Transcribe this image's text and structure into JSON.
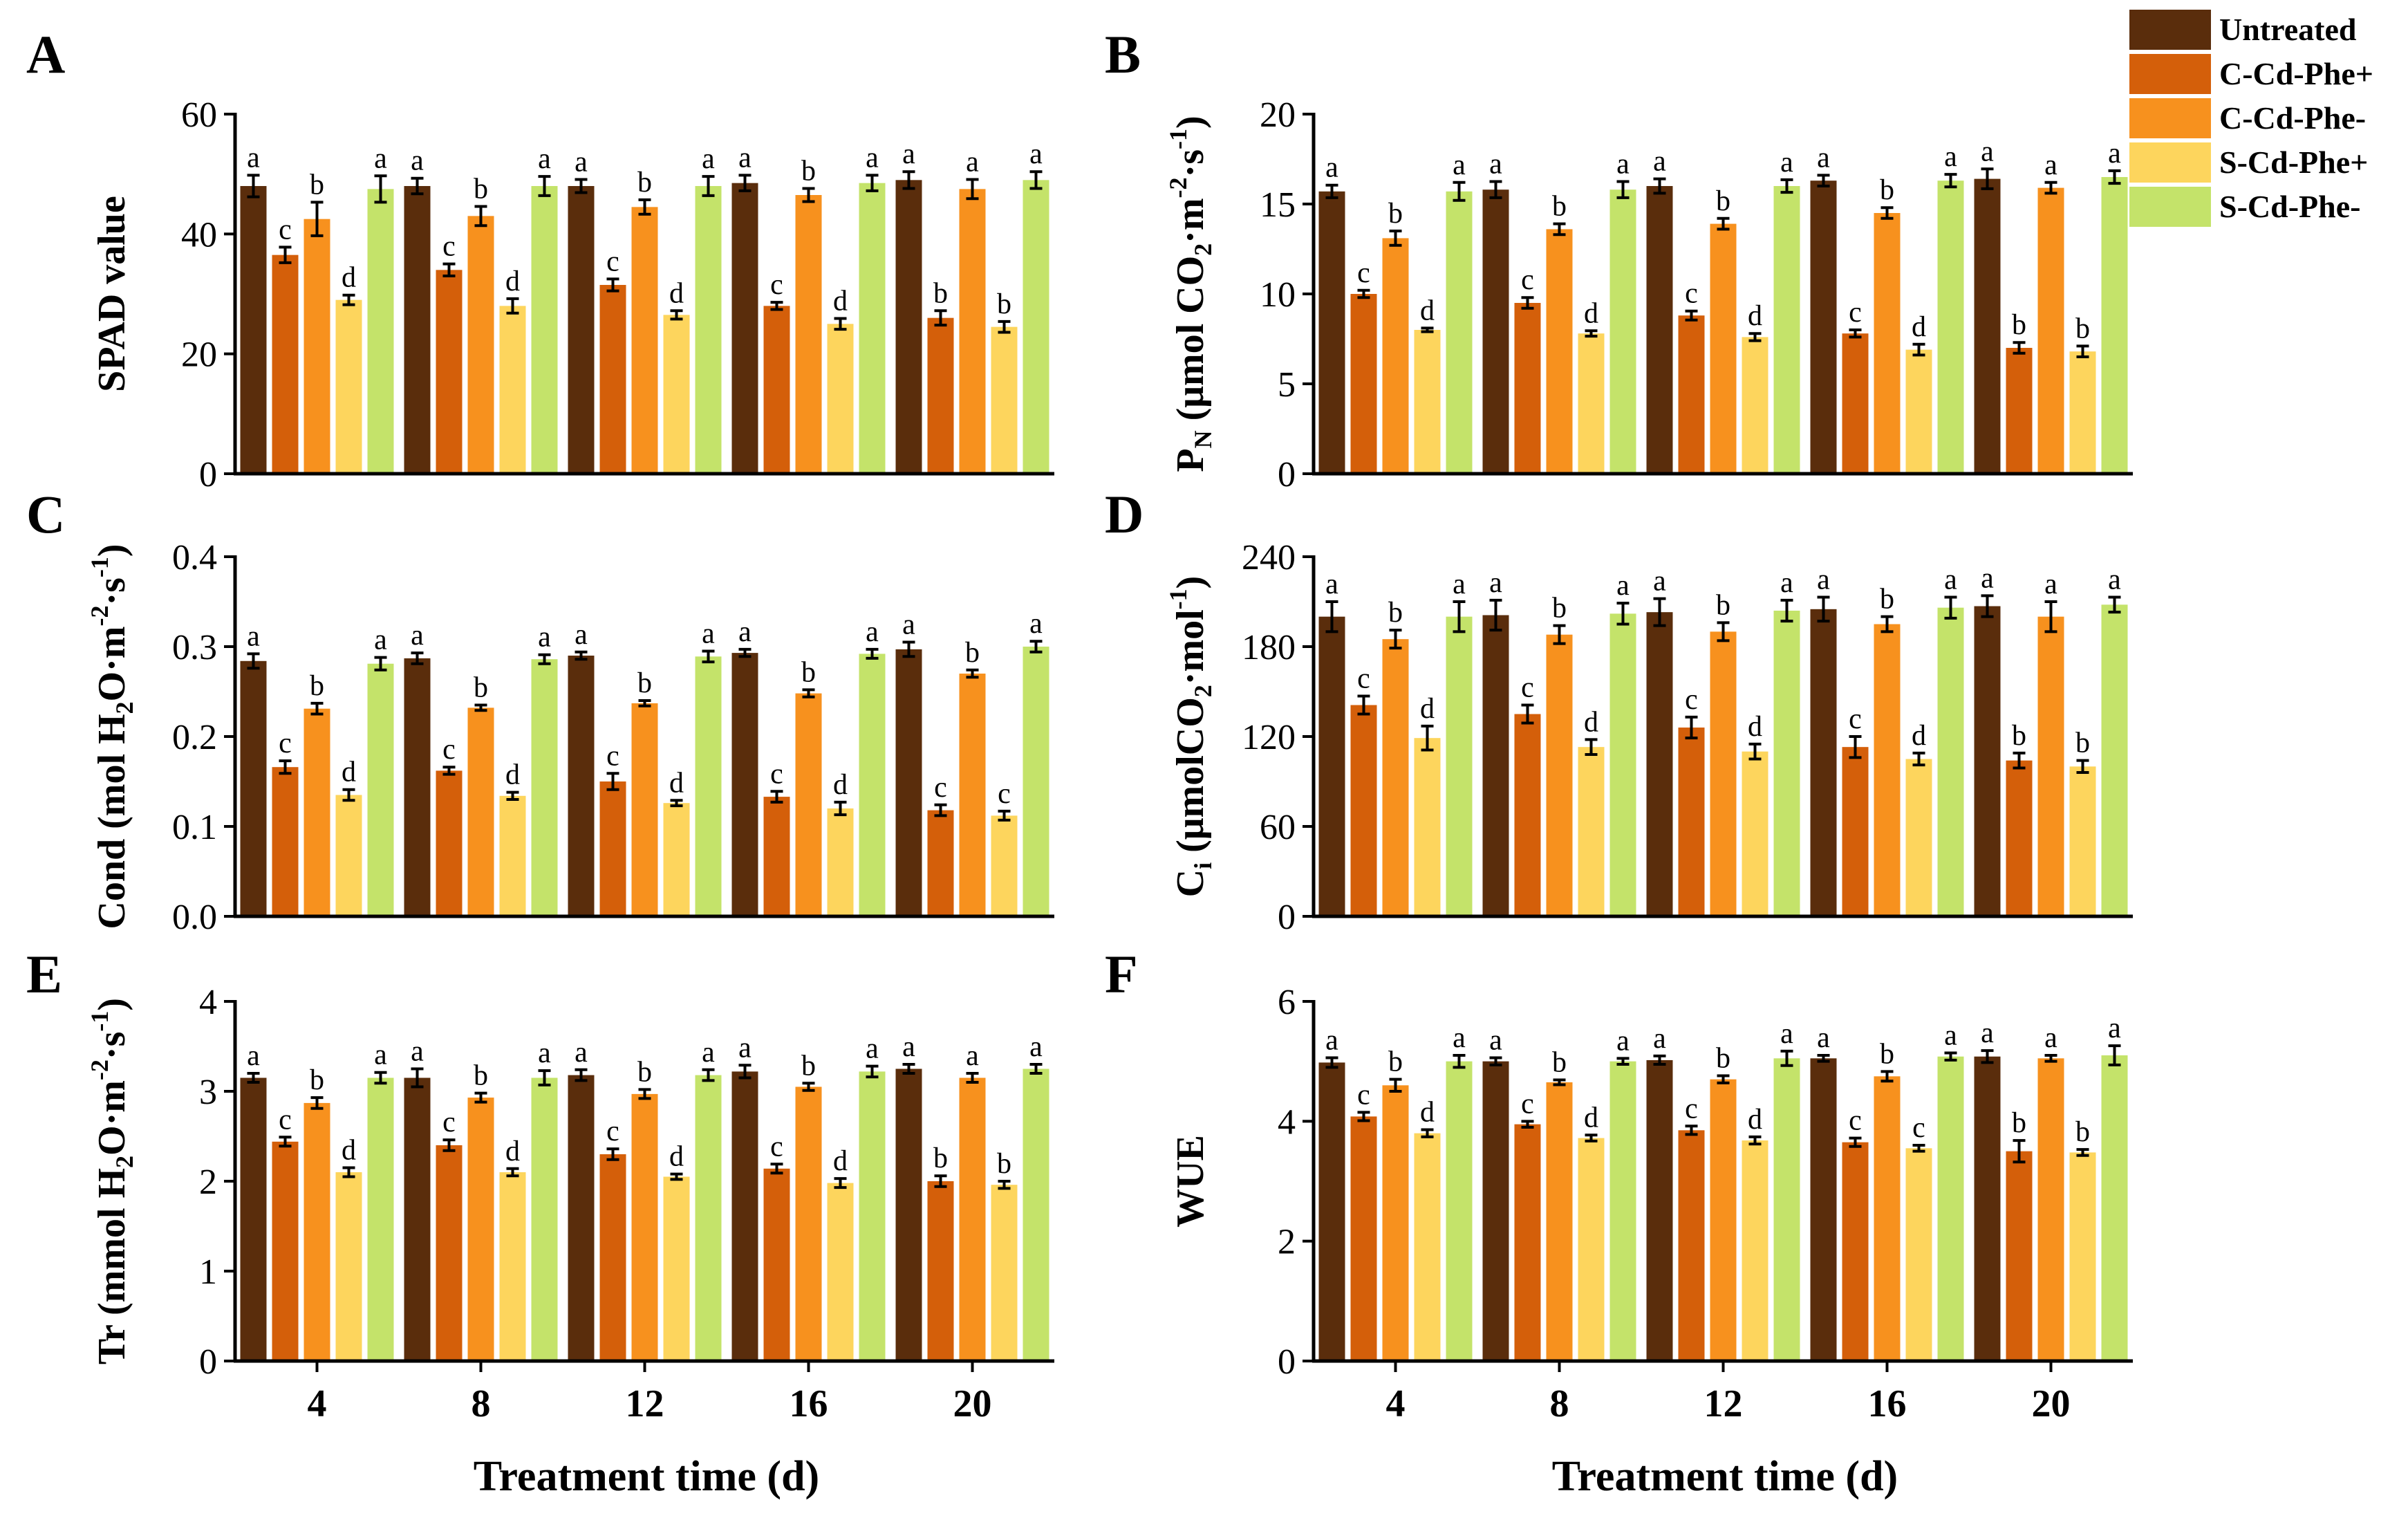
{
  "figure": {
    "colors": [
      "#5a2d0c",
      "#d45f0a",
      "#f7911e",
      "#fdd55d",
      "#c4e36a"
    ],
    "legend": [
      "Untreated",
      "C-Cd-Phe+",
      "C-Cd-Phe-",
      "S-Cd-Phe+",
      "S-Cd-Phe-"
    ],
    "xlabel": "Treatment time (d)"
  },
  "chart_data": [
    {
      "id": "A",
      "label": "A",
      "type": "bar",
      "ylabel_parts": [
        {
          "text": "SPAD value"
        }
      ],
      "categories": [
        "4",
        "8",
        "12",
        "16",
        "20"
      ],
      "ylim": [
        0,
        60
      ],
      "yticks": [
        "0",
        "20",
        "40",
        "60"
      ],
      "show_xticks": false,
      "series": [
        {
          "name": "Untreated",
          "values": [
            48,
            48,
            48,
            48.5,
            49
          ],
          "errors": [
            1.8,
            1.3,
            1.1,
            1.3,
            1.4
          ],
          "letters": [
            "a",
            "a",
            "a",
            "a",
            "a"
          ]
        },
        {
          "name": "C-Cd-Phe+",
          "values": [
            36.5,
            34,
            31.5,
            28,
            26
          ],
          "errors": [
            1.3,
            1.0,
            1.0,
            0.6,
            1.2
          ],
          "letters": [
            "c",
            "c",
            "c",
            "c",
            "b"
          ]
        },
        {
          "name": "C-Cd-Phe-",
          "values": [
            42.5,
            43,
            44.5,
            46.5,
            47.5
          ],
          "errors": [
            2.8,
            1.6,
            1.2,
            1.1,
            1.6
          ],
          "letters": [
            "b",
            "b",
            "b",
            "b",
            "a"
          ]
        },
        {
          "name": "S-Cd-Phe+",
          "values": [
            29,
            28,
            26.5,
            25,
            24.5
          ],
          "errors": [
            0.8,
            1.2,
            0.7,
            0.9,
            0.9
          ],
          "letters": [
            "d",
            "d",
            "d",
            "d",
            "b"
          ]
        },
        {
          "name": "S-Cd-Phe-",
          "values": [
            47.5,
            48,
            48,
            48.5,
            49
          ],
          "errors": [
            2.2,
            1.6,
            1.6,
            1.3,
            1.4
          ],
          "letters": [
            "a",
            "a",
            "a",
            "a",
            "a"
          ]
        }
      ]
    },
    {
      "id": "B",
      "label": "B",
      "type": "bar",
      "ylabel_parts": [
        {
          "text": "P"
        },
        {
          "text": "N",
          "sub": true
        },
        {
          "text": " (μmol CO"
        },
        {
          "text": "2",
          "sub": true
        },
        {
          "text": "·m"
        },
        {
          "text": "-2",
          "sup": true
        },
        {
          "text": "·s"
        },
        {
          "text": "-1",
          "sup": true
        },
        {
          "text": ")"
        }
      ],
      "categories": [
        "4",
        "8",
        "12",
        "16",
        "20"
      ],
      "ylim": [
        0,
        20
      ],
      "yticks": [
        "0",
        "5",
        "10",
        "15",
        "20"
      ],
      "show_xticks": false,
      "series": [
        {
          "name": "Untreated",
          "values": [
            15.7,
            15.8,
            16,
            16.3,
            16.4
          ],
          "errors": [
            0.35,
            0.45,
            0.4,
            0.3,
            0.55
          ],
          "letters": [
            "a",
            "a",
            "a",
            "a",
            "a"
          ]
        },
        {
          "name": "C-Cd-Phe+",
          "values": [
            10,
            9.5,
            8.8,
            7.8,
            7
          ],
          "errors": [
            0.2,
            0.3,
            0.25,
            0.2,
            0.3
          ],
          "letters": [
            "c",
            "c",
            "c",
            "c",
            "b"
          ]
        },
        {
          "name": "C-Cd-Phe-",
          "values": [
            13.1,
            13.6,
            13.9,
            14.5,
            15.9
          ],
          "errors": [
            0.4,
            0.3,
            0.3,
            0.3,
            0.3
          ],
          "letters": [
            "b",
            "b",
            "b",
            "b",
            "a"
          ]
        },
        {
          "name": "S-Cd-Phe+",
          "values": [
            8,
            7.8,
            7.6,
            6.9,
            6.8
          ],
          "errors": [
            0.1,
            0.15,
            0.2,
            0.3,
            0.3
          ],
          "letters": [
            "d",
            "d",
            "d",
            "d",
            "b"
          ]
        },
        {
          "name": "S-Cd-Phe-",
          "values": [
            15.7,
            15.8,
            16,
            16.3,
            16.5
          ],
          "errors": [
            0.5,
            0.45,
            0.35,
            0.35,
            0.35
          ],
          "letters": [
            "a",
            "a",
            "a",
            "a",
            "a"
          ]
        }
      ]
    },
    {
      "id": "C",
      "label": "C",
      "type": "bar",
      "ylabel_parts": [
        {
          "text": "Cond (mol H"
        },
        {
          "text": "2",
          "sub": true
        },
        {
          "text": "O·m"
        },
        {
          "text": "-2",
          "sup": true
        },
        {
          "text": "·s"
        },
        {
          "text": "-1",
          "sup": true
        },
        {
          "text": ")"
        }
      ],
      "categories": [
        "4",
        "8",
        "12",
        "16",
        "20"
      ],
      "ylim": [
        0,
        0.4
      ],
      "yticks": [
        "0.0",
        "0.1",
        "0.2",
        "0.3",
        "0.4"
      ],
      "show_xticks": false,
      "series": [
        {
          "name": "Untreated",
          "values": [
            0.284,
            0.287,
            0.29,
            0.293,
            0.297
          ],
          "errors": [
            0.008,
            0.006,
            0.004,
            0.004,
            0.008
          ],
          "letters": [
            "a",
            "a",
            "a",
            "a",
            "a"
          ]
        },
        {
          "name": "C-Cd-Phe+",
          "values": [
            0.166,
            0.162,
            0.15,
            0.133,
            0.118
          ],
          "errors": [
            0.007,
            0.004,
            0.009,
            0.006,
            0.006
          ],
          "letters": [
            "c",
            "c",
            "c",
            "c",
            "c"
          ]
        },
        {
          "name": "C-Cd-Phe-",
          "values": [
            0.231,
            0.232,
            0.237,
            0.248,
            0.27
          ],
          "errors": [
            0.006,
            0.003,
            0.003,
            0.004,
            0.004
          ],
          "letters": [
            "b",
            "b",
            "b",
            "b",
            "b"
          ]
        },
        {
          "name": "S-Cd-Phe+",
          "values": [
            0.135,
            0.134,
            0.126,
            0.12,
            0.112
          ],
          "errors": [
            0.006,
            0.004,
            0.003,
            0.007,
            0.005
          ],
          "letters": [
            "d",
            "d",
            "d",
            "d",
            "c"
          ]
        },
        {
          "name": "S-Cd-Phe-",
          "values": [
            0.281,
            0.286,
            0.289,
            0.292,
            0.3
          ],
          "errors": [
            0.007,
            0.005,
            0.006,
            0.005,
            0.006
          ],
          "letters": [
            "a",
            "a",
            "a",
            "a",
            "a"
          ]
        }
      ]
    },
    {
      "id": "D",
      "label": "D",
      "type": "bar",
      "ylabel_parts": [
        {
          "text": "C"
        },
        {
          "text": "i",
          "sub": true
        },
        {
          "text": " (μmolCO"
        },
        {
          "text": "2",
          "sub": true
        },
        {
          "text": "·mol"
        },
        {
          "text": "-1",
          "sup": true
        },
        {
          "text": ")"
        }
      ],
      "categories": [
        "4",
        "8",
        "12",
        "16",
        "20"
      ],
      "ylim": [
        0,
        240
      ],
      "yticks": [
        "0",
        "60",
        "120",
        "180",
        "240"
      ],
      "show_xticks": false,
      "series": [
        {
          "name": "Untreated",
          "values": [
            200,
            201,
            203,
            205,
            207
          ],
          "errors": [
            10,
            10,
            9,
            8,
            7
          ],
          "letters": [
            "a",
            "a",
            "a",
            "a",
            "a"
          ]
        },
        {
          "name": "C-Cd-Phe+",
          "values": [
            141,
            135,
            126,
            113,
            104
          ],
          "errors": [
            6,
            6,
            7,
            7,
            5
          ],
          "letters": [
            "c",
            "c",
            "c",
            "c",
            "b"
          ]
        },
        {
          "name": "C-Cd-Phe-",
          "values": [
            185,
            188,
            190,
            195,
            200
          ],
          "errors": [
            6,
            6,
            6,
            5,
            10
          ],
          "letters": [
            "b",
            "b",
            "b",
            "b",
            "a"
          ]
        },
        {
          "name": "S-Cd-Phe+",
          "values": [
            119,
            113,
            110,
            105,
            100
          ],
          "errors": [
            8,
            5,
            5,
            4,
            4
          ],
          "letters": [
            "d",
            "d",
            "d",
            "d",
            "b"
          ]
        },
        {
          "name": "S-Cd-Phe-",
          "values": [
            200,
            202,
            204,
            206,
            208
          ],
          "errors": [
            10,
            7,
            7,
            7,
            5
          ],
          "letters": [
            "a",
            "a",
            "a",
            "a",
            "a"
          ]
        }
      ]
    },
    {
      "id": "E",
      "label": "E",
      "type": "bar",
      "ylabel_parts": [
        {
          "text": "Tr (mmol H"
        },
        {
          "text": "2",
          "sub": true
        },
        {
          "text": "O·m"
        },
        {
          "text": "-2",
          "sup": true
        },
        {
          "text": "·s"
        },
        {
          "text": "-1",
          "sup": true
        },
        {
          "text": ")"
        }
      ],
      "categories": [
        "4",
        "8",
        "12",
        "16",
        "20"
      ],
      "ylim": [
        0,
        4
      ],
      "yticks": [
        "0",
        "1",
        "2",
        "3",
        "4"
      ],
      "show_xticks": true,
      "series": [
        {
          "name": "Untreated",
          "values": [
            3.15,
            3.15,
            3.18,
            3.22,
            3.25
          ],
          "errors": [
            0.05,
            0.1,
            0.06,
            0.07,
            0.05
          ],
          "letters": [
            "a",
            "a",
            "a",
            "a",
            "a"
          ]
        },
        {
          "name": "C-Cd-Phe+",
          "values": [
            2.44,
            2.4,
            2.3,
            2.14,
            2.0
          ],
          "errors": [
            0.05,
            0.06,
            0.06,
            0.05,
            0.06
          ],
          "letters": [
            "c",
            "c",
            "c",
            "c",
            "b"
          ]
        },
        {
          "name": "C-Cd-Phe-",
          "values": [
            2.87,
            2.93,
            2.97,
            3.05,
            3.15
          ],
          "errors": [
            0.06,
            0.05,
            0.05,
            0.04,
            0.05
          ],
          "letters": [
            "b",
            "b",
            "b",
            "b",
            "a"
          ]
        },
        {
          "name": "S-Cd-Phe+",
          "values": [
            2.1,
            2.1,
            2.05,
            1.98,
            1.96
          ],
          "errors": [
            0.05,
            0.04,
            0.03,
            0.05,
            0.04
          ],
          "letters": [
            "d",
            "d",
            "d",
            "d",
            "b"
          ]
        },
        {
          "name": "S-Cd-Phe-",
          "values": [
            3.15,
            3.15,
            3.18,
            3.22,
            3.25
          ],
          "errors": [
            0.06,
            0.08,
            0.06,
            0.06,
            0.05
          ],
          "letters": [
            "a",
            "a",
            "a",
            "a",
            "a"
          ]
        }
      ]
    },
    {
      "id": "F",
      "label": "F",
      "type": "bar",
      "ylabel_parts": [
        {
          "text": "WUE"
        }
      ],
      "categories": [
        "4",
        "8",
        "12",
        "16",
        "20"
      ],
      "ylim": [
        0,
        6
      ],
      "yticks": [
        "0",
        "2",
        "4",
        "6"
      ],
      "show_xticks": true,
      "series": [
        {
          "name": "Untreated",
          "values": [
            4.98,
            5.0,
            5.02,
            5.05,
            5.08
          ],
          "errors": [
            0.08,
            0.06,
            0.07,
            0.05,
            0.1
          ],
          "letters": [
            "a",
            "a",
            "a",
            "a",
            "a"
          ]
        },
        {
          "name": "C-Cd-Phe+",
          "values": [
            4.08,
            3.95,
            3.85,
            3.65,
            3.5
          ],
          "errors": [
            0.07,
            0.05,
            0.07,
            0.07,
            0.18
          ],
          "letters": [
            "c",
            "c",
            "c",
            "c",
            "b"
          ]
        },
        {
          "name": "C-Cd-Phe-",
          "values": [
            4.6,
            4.65,
            4.7,
            4.75,
            5.05
          ],
          "errors": [
            0.1,
            0.04,
            0.06,
            0.08,
            0.05
          ],
          "letters": [
            "b",
            "b",
            "b",
            "b",
            "a"
          ]
        },
        {
          "name": "S-Cd-Phe+",
          "values": [
            3.8,
            3.72,
            3.68,
            3.55,
            3.48
          ],
          "errors": [
            0.06,
            0.05,
            0.06,
            0.05,
            0.05
          ],
          "letters": [
            "d",
            "d",
            "d",
            "c",
            "b"
          ]
        },
        {
          "name": "S-Cd-Phe-",
          "values": [
            5.0,
            5.0,
            5.05,
            5.08,
            5.1
          ],
          "errors": [
            0.1,
            0.05,
            0.12,
            0.06,
            0.16
          ],
          "letters": [
            "a",
            "a",
            "a",
            "a",
            "a"
          ]
        }
      ]
    }
  ]
}
